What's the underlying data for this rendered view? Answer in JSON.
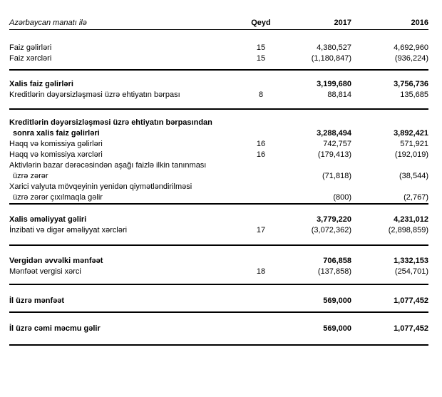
{
  "header": {
    "currency_label": "Azərbaycan manatı ilə",
    "note_label": "Qeyd",
    "col_2017": "2017",
    "col_2016": "2016"
  },
  "colors": {
    "background": "#ffffff",
    "text": "#000000",
    "rule": "#000000"
  },
  "sections": [
    {
      "rows": [
        {
          "lines": [
            "Faiz gəlirləri"
          ],
          "note": "15",
          "v2017": "4,380,527",
          "v2016": "4,692,960",
          "bold": false
        },
        {
          "lines": [
            "Faiz xərcləri"
          ],
          "note": "15",
          "v2017": "(1,180,847)",
          "v2016": "(936,224)",
          "bold": false
        }
      ]
    },
    {
      "rows": [
        {
          "lines": [
            "Xalis faiz gəlirləri"
          ],
          "note": "",
          "v2017": "3,199,680",
          "v2016": "3,756,736",
          "bold": true
        },
        {
          "lines": [
            "Kreditlərin dəyərsizləşməsi üzrə ehtiyatın bərpası"
          ],
          "note": "8",
          "v2017": "88,814",
          "v2016": "135,685",
          "bold": false
        }
      ]
    },
    {
      "rows": [
        {
          "lines": [
            "Kreditlərin dəyərsizləşməsi üzrə ehtiyatın bərpasından",
            "sonra xalis faiz gəlirləri"
          ],
          "note": "",
          "v2017": "3,288,494",
          "v2016": "3,892,421",
          "bold": true
        },
        {
          "lines": [
            "Haqq və komissiya gəlirləri"
          ],
          "note": "16",
          "v2017": "742,757",
          "v2016": "571,921",
          "bold": false
        },
        {
          "lines": [
            "Haqq və komissiya xərcləri"
          ],
          "note": "16",
          "v2017": "(179,413)",
          "v2016": "(192,019)",
          "bold": false
        },
        {
          "lines": [
            "Aktivlərin bazar dərəcəsindən aşağı faizlə ilkin tanınması",
            "üzrə zərər"
          ],
          "note": "",
          "v2017": "(71,818)",
          "v2016": "(38,544)",
          "bold": false
        },
        {
          "lines": [
            "Xarici valyuta mövqeyinin yenidən qiymətləndirilməsi",
            "üzrə zərər çıxılmaqla gəlir"
          ],
          "note": "",
          "v2017": "(800)",
          "v2016": "(2,767)",
          "bold": false
        }
      ]
    },
    {
      "rows": [
        {
          "lines": [
            "Xalis əməliyyat gəliri"
          ],
          "note": "",
          "v2017": "3,779,220",
          "v2016": "4,231,012",
          "bold": true
        },
        {
          "lines": [
            "İnzibati və digər əməliyyat xərcləri"
          ],
          "note": "17",
          "v2017": "(3,072,362)",
          "v2016": "(2,898,859)",
          "bold": false
        }
      ]
    },
    {
      "rows": [
        {
          "lines": [
            "Vergidən əvvəlki mənfəət"
          ],
          "note": "",
          "v2017": "706,858",
          "v2016": "1,332,153",
          "bold": true
        },
        {
          "lines": [
            "Mənfəət vergisi xərci"
          ],
          "note": "18",
          "v2017": "(137,858)",
          "v2016": "(254,701)",
          "bold": false
        }
      ]
    },
    {
      "rows": [
        {
          "lines": [
            "İl üzrə mənfəət"
          ],
          "note": "",
          "v2017": "569,000",
          "v2016": "1,077,452",
          "bold": true
        }
      ]
    },
    {
      "rows": [
        {
          "lines": [
            "İl üzrə cəmi məcmu gəlir"
          ],
          "note": "",
          "v2017": "569,000",
          "v2016": "1,077,452",
          "bold": true
        }
      ]
    }
  ]
}
